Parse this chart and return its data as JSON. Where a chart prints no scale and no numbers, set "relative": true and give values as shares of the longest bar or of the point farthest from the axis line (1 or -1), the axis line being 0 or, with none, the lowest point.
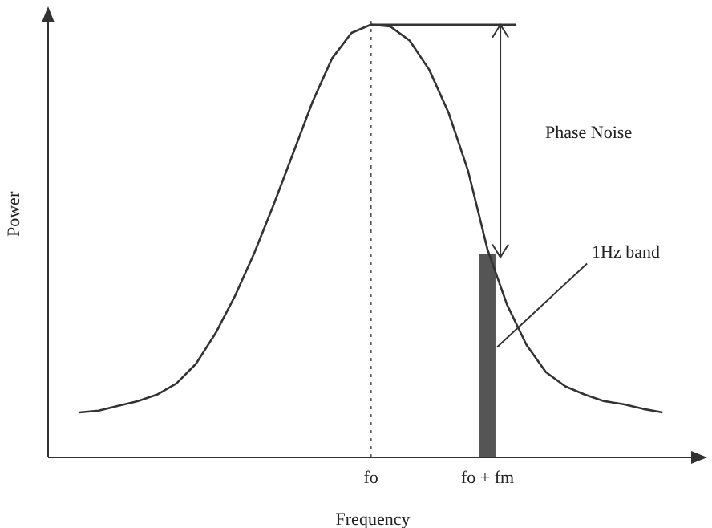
{
  "chart_data": {
    "type": "line",
    "relative": true,
    "xlabel": "Frequency",
    "ylabel": "Power",
    "categories": [
      null,
      null,
      null,
      null,
      null,
      null,
      null,
      null,
      null,
      null,
      null,
      null,
      null,
      null,
      null,
      "fo",
      null,
      null,
      null,
      null,
      null,
      "fo + fm",
      null,
      null,
      null,
      null,
      null,
      null,
      null,
      null,
      null
    ],
    "series": [
      {
        "color": "#333333",
        "values": [
          0.104,
          0.108,
          0.119,
          0.13,
          0.145,
          0.171,
          0.216,
          0.286,
          0.372,
          0.472,
          0.584,
          0.703,
          0.822,
          0.922,
          0.981,
          1,
          0.996,
          0.963,
          0.896,
          0.796,
          0.662,
          0.48,
          0.353,
          0.26,
          0.197,
          0.164,
          0.145,
          0.13,
          0.123,
          0.112,
          0.104
        ]
      },
      {
        "type": "bar",
        "color": "#555555",
        "values": [
          null,
          null,
          null,
          null,
          null,
          null,
          null,
          null,
          null,
          null,
          null,
          null,
          null,
          null,
          null,
          null,
          null,
          null,
          null,
          null,
          null,
          0.47,
          null,
          null,
          null,
          null,
          null,
          null,
          null,
          null,
          null
        ]
      }
    ],
    "ref_lines": [
      {
        "axis": "x",
        "value": "fo",
        "line_style": "dotted",
        "color": "#555555"
      }
    ],
    "annotations": [
      "Phase Noise",
      "1Hz band"
    ],
    "marker": "none",
    "line_style": "solid"
  }
}
